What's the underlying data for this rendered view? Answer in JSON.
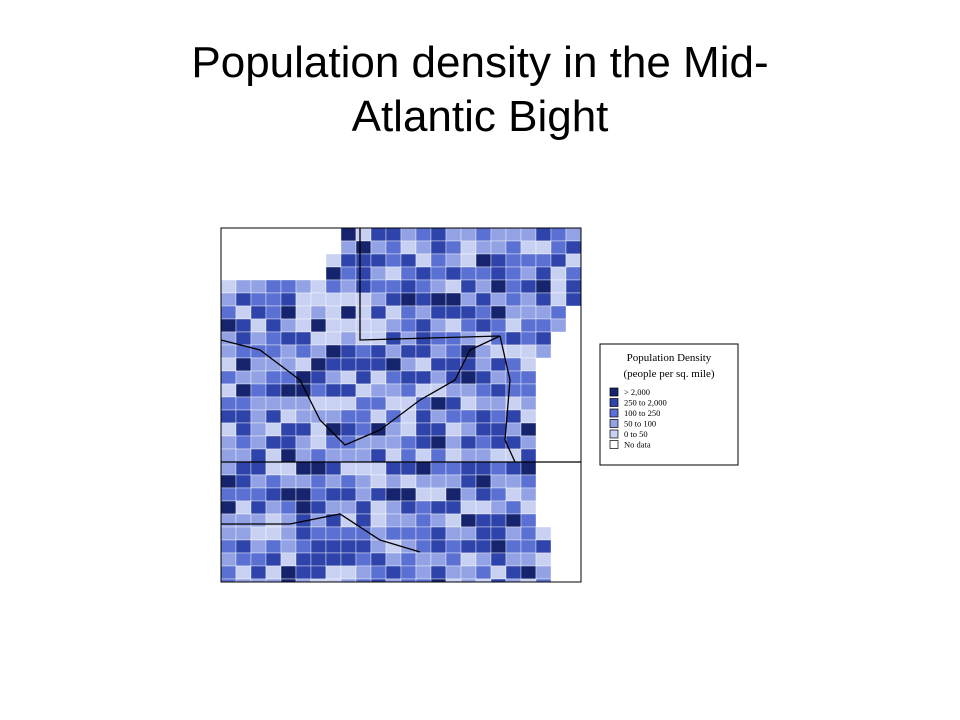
{
  "slide": {
    "title": "Population density in the Mid-Atlantic Bight"
  },
  "legend": {
    "title": "Population Density",
    "subtitle": "(people per sq. mile)",
    "items": [
      {
        "label": "> 2,000",
        "color": "#16246e"
      },
      {
        "label": "250 to 2,000",
        "color": "#2f44aa"
      },
      {
        "label": "100 to  250",
        "color": "#5a70d2"
      },
      {
        "label": "50 to  100",
        "color": "#92a2e4"
      },
      {
        "label": "0 to   50",
        "color": "#c9d1f3"
      },
      {
        "label": "No data",
        "color": "#ffffff"
      }
    ]
  }
}
